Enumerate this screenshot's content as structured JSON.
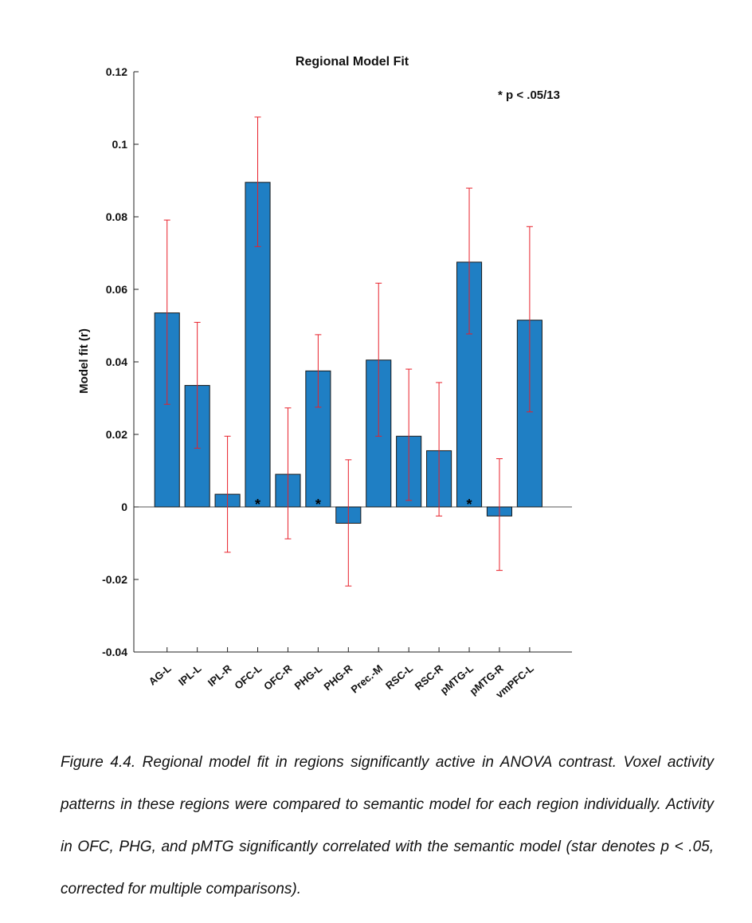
{
  "chart_data": {
    "type": "bar",
    "title": "Regional Model Fit",
    "ylabel": "Model fit (r)",
    "xlabel": "",
    "ylim": [
      -0.04,
      0.12
    ],
    "yticks": [
      "-0.04",
      "-0.02",
      "0",
      "0.02",
      "0.04",
      "0.06",
      "0.08",
      "0.1",
      "0.12"
    ],
    "categories": [
      "AG-L",
      "IPL-L",
      "IPL-R",
      "OFC-L",
      "OFC-R",
      "PHG-L",
      "PHG-R",
      "Prec.-M",
      "RSC-L",
      "RSC-R",
      "pMTG-L",
      "pMTG-R",
      "vmPFC-L"
    ],
    "values": [
      0.0535,
      0.0335,
      0.0035,
      0.0895,
      0.009,
      0.0375,
      -0.0045,
      0.0405,
      0.0195,
      0.0155,
      0.0675,
      -0.0025,
      0.0515
    ],
    "error_low": [
      0.0283,
      0.0162,
      -0.0125,
      0.0718,
      -0.0088,
      0.0275,
      -0.0218,
      0.0195,
      0.0018,
      -0.0025,
      0.0477,
      -0.0175,
      0.0262
    ],
    "error_high": [
      0.0791,
      0.0509,
      0.0195,
      0.1075,
      0.0273,
      0.0475,
      0.013,
      0.0617,
      0.038,
      0.0343,
      0.0879,
      0.0133,
      0.0773
    ],
    "significant": [
      false,
      false,
      false,
      true,
      false,
      true,
      false,
      false,
      false,
      false,
      true,
      false,
      false
    ],
    "significance_marker": "*",
    "annotation": "* p < .05/13",
    "grid": false,
    "colors": {
      "bar": "#1f7fc4",
      "bar_edge": "#1a1a1a",
      "error": "#e8202a",
      "axis": "#222222"
    }
  },
  "caption": "Figure 4.4. Regional model fit in regions significantly active in ANOVA contrast. Voxel activity patterns in these regions were compared to semantic model for each region individually. Activity in OFC, PHG, and pMTG significantly correlated with the semantic model (star denotes p < .05, corrected for multiple comparisons)."
}
